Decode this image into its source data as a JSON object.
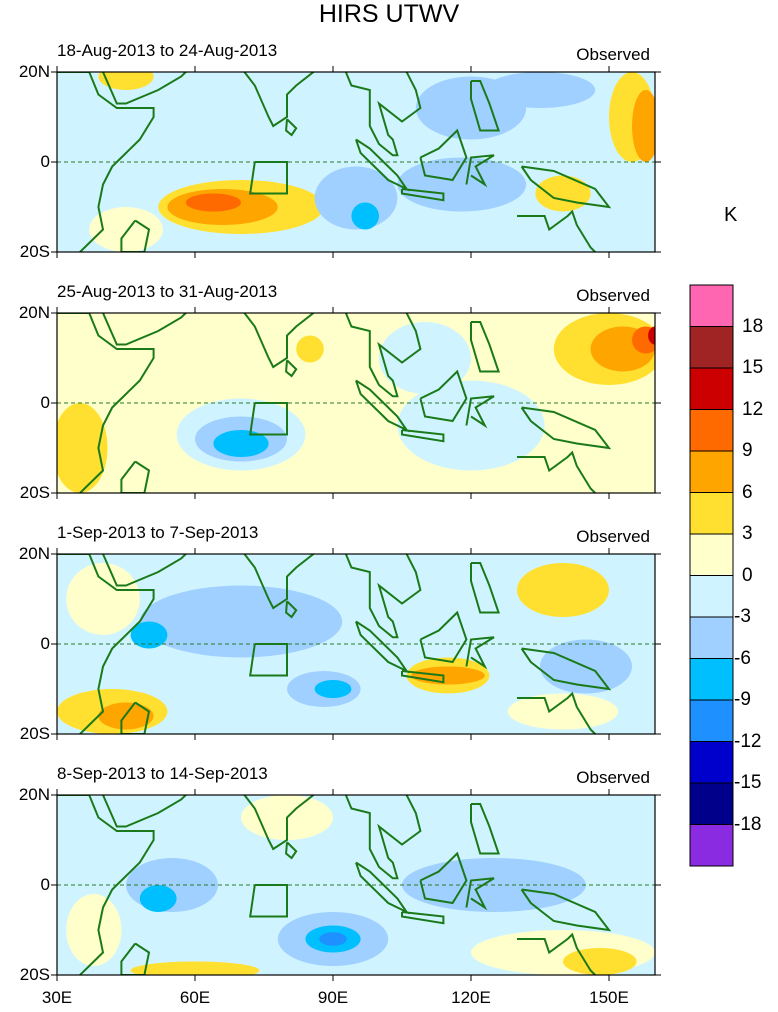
{
  "title": "HIRS UTWV",
  "unit_label": "K",
  "chart_data": {
    "type": "heatmap",
    "x_ticks": [
      "30E",
      "60E",
      "90E",
      "120E",
      "150E"
    ],
    "x_tick_values": [
      30,
      60,
      90,
      120,
      150
    ],
    "xlim": [
      30,
      160
    ],
    "y_ticks": [
      "20N",
      "0",
      "20S"
    ],
    "y_tick_values": [
      20,
      0,
      -20
    ],
    "ylim": [
      -20,
      20
    ],
    "colorbar": {
      "labels": [
        "18",
        "15",
        "12",
        "9",
        "6",
        "3",
        "0",
        "-3",
        "-6",
        "-9",
        "-12",
        "-15",
        "-18"
      ],
      "colors": [
        "#ff66b2",
        "#a02424",
        "#cc0000",
        "#ff6a00",
        "#ffa500",
        "#ffe030",
        "#ffffcc",
        "#d0f4ff",
        "#a0d0ff",
        "#00bfff",
        "#1e90ff",
        "#0000cd",
        "#00008b",
        "#8a2be2"
      ]
    },
    "panels": [
      {
        "period": "18-Aug-2013 to 24-Aug-2013",
        "label": "Observed",
        "base": -1,
        "blobs": [
          [
            45,
            19,
            6,
            3,
            2
          ],
          [
            155,
            10,
            5,
            10,
            2
          ],
          [
            158,
            8,
            3,
            8,
            3
          ],
          [
            70,
            -10,
            18,
            6,
            2
          ],
          [
            66,
            -10,
            12,
            4,
            3
          ],
          [
            64,
            -9,
            6,
            2,
            4
          ],
          [
            95,
            -8,
            9,
            7,
            -2
          ],
          [
            97,
            -12,
            3,
            3,
            -3
          ],
          [
            118,
            -5,
            14,
            6,
            -2
          ],
          [
            120,
            12,
            12,
            7,
            -2
          ],
          [
            140,
            -7,
            6,
            4,
            2
          ],
          [
            45,
            -15,
            8,
            5,
            1
          ],
          [
            135,
            16,
            12,
            4,
            -2
          ]
        ]
      },
      {
        "period": "25-Aug-2013 to 31-Aug-2013",
        "label": "Observed",
        "base": 1,
        "blobs": [
          [
            150,
            12,
            12,
            8,
            2
          ],
          [
            153,
            12,
            7,
            5,
            3
          ],
          [
            158,
            14,
            3,
            3,
            4
          ],
          [
            160,
            15,
            1.5,
            2,
            5
          ],
          [
            70,
            -7,
            14,
            8,
            -1
          ],
          [
            70,
            -8,
            10,
            5,
            -2
          ],
          [
            70,
            -9,
            6,
            3,
            -3
          ],
          [
            120,
            -5,
            16,
            10,
            -1
          ],
          [
            35,
            -10,
            6,
            10,
            2
          ],
          [
            110,
            10,
            10,
            8,
            -1
          ],
          [
            85,
            12,
            3,
            3,
            2
          ]
        ]
      },
      {
        "period": "1-Sep-2013 to 7-Sep-2013",
        "label": "Observed",
        "base": -1,
        "blobs": [
          [
            70,
            5,
            22,
            8,
            -2
          ],
          [
            50,
            2,
            4,
            3,
            -3
          ],
          [
            88,
            -10,
            8,
            4,
            -2
          ],
          [
            90,
            -10,
            4,
            2,
            -3
          ],
          [
            115,
            -7,
            9,
            4,
            2
          ],
          [
            115,
            -7,
            8,
            2,
            3
          ],
          [
            140,
            12,
            10,
            6,
            2
          ],
          [
            145,
            -5,
            10,
            6,
            -2
          ],
          [
            42,
            -15,
            12,
            5,
            2
          ],
          [
            45,
            -16,
            6,
            3,
            3
          ],
          [
            40,
            10,
            8,
            8,
            1
          ],
          [
            140,
            -15,
            12,
            4,
            1
          ]
        ]
      },
      {
        "period": "8-Sep-2013 to 14-Sep-2013",
        "label": "Observed",
        "base": -1,
        "blobs": [
          [
            55,
            0,
            10,
            6,
            -2
          ],
          [
            52,
            -3,
            4,
            3,
            -3
          ],
          [
            90,
            -12,
            12,
            6,
            -2
          ],
          [
            90,
            -12,
            6,
            3,
            -3
          ],
          [
            90,
            -12,
            3,
            1.5,
            -4
          ],
          [
            125,
            0,
            20,
            6,
            -2
          ],
          [
            140,
            -15,
            20,
            5,
            1
          ],
          [
            148,
            -17,
            8,
            3,
            2
          ],
          [
            60,
            -19,
            14,
            2,
            2
          ],
          [
            38,
            -10,
            6,
            8,
            1
          ],
          [
            80,
            15,
            10,
            5,
            1
          ]
        ]
      }
    ]
  }
}
